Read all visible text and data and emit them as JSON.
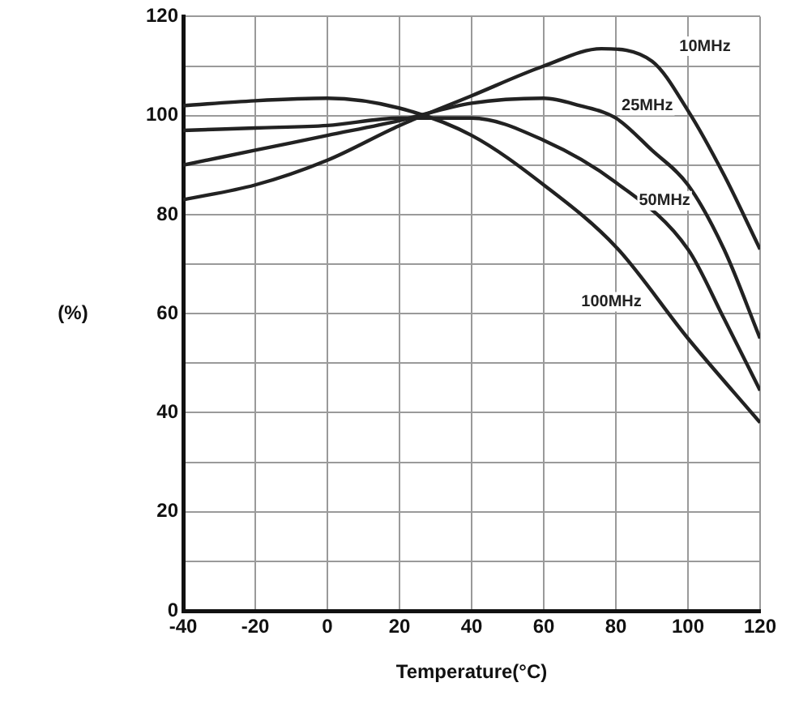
{
  "chart_data": {
    "type": "line",
    "xlabel": "Temperature(°C)",
    "ylabel": "(%)",
    "xlim": [
      -40,
      120
    ],
    "xticks": [
      -40,
      -20,
      0,
      20,
      40,
      60,
      80,
      100,
      120
    ],
    "ylim": [
      0,
      120
    ],
    "yticks": [
      0,
      {
        "value": 10,
        "label": null
      },
      20,
      {
        "value": 30,
        "label": null
      },
      40,
      {
        "value": 50,
        "label": null
      },
      60,
      {
        "value": 70,
        "label": null
      },
      80,
      {
        "value": 90,
        "label": null
      },
      100,
      {
        "value": 110,
        "label": null
      },
      120
    ],
    "grid": true,
    "legend": false,
    "marker": "none",
    "line_style": "solid",
    "series": [
      {
        "name": "10MHz",
        "color": "#222222",
        "x": [
          -40,
          -20,
          0,
          20,
          40,
          60,
          76,
          90,
          100,
          110,
          120
        ],
        "values": [
          83,
          86,
          91,
          98,
          104,
          110,
          113.5,
          111,
          101,
          88,
          73
        ]
      },
      {
        "name": "25MHz",
        "color": "#222222",
        "x": [
          -40,
          -20,
          0,
          20,
          40,
          60,
          70,
          80,
          90,
          100,
          110,
          120
        ],
        "values": [
          90,
          93,
          96,
          99,
          102.5,
          103.5,
          102,
          99.5,
          93,
          86,
          73,
          55
        ]
      },
      {
        "name": "50MHz",
        "color": "#222222",
        "x": [
          -40,
          -20,
          0,
          20,
          40,
          60,
          80,
          100,
          110,
          120
        ],
        "values": [
          97,
          97.5,
          98,
          99.5,
          99.5,
          95,
          86.5,
          73,
          59,
          44.5
        ]
      },
      {
        "name": "100MHz",
        "color": "#222222",
        "x": [
          -40,
          -20,
          0,
          20,
          40,
          60,
          80,
          100,
          120
        ],
        "values": [
          102,
          103,
          103.5,
          101.5,
          96,
          86,
          73.5,
          55,
          38
        ]
      }
    ]
  }
}
